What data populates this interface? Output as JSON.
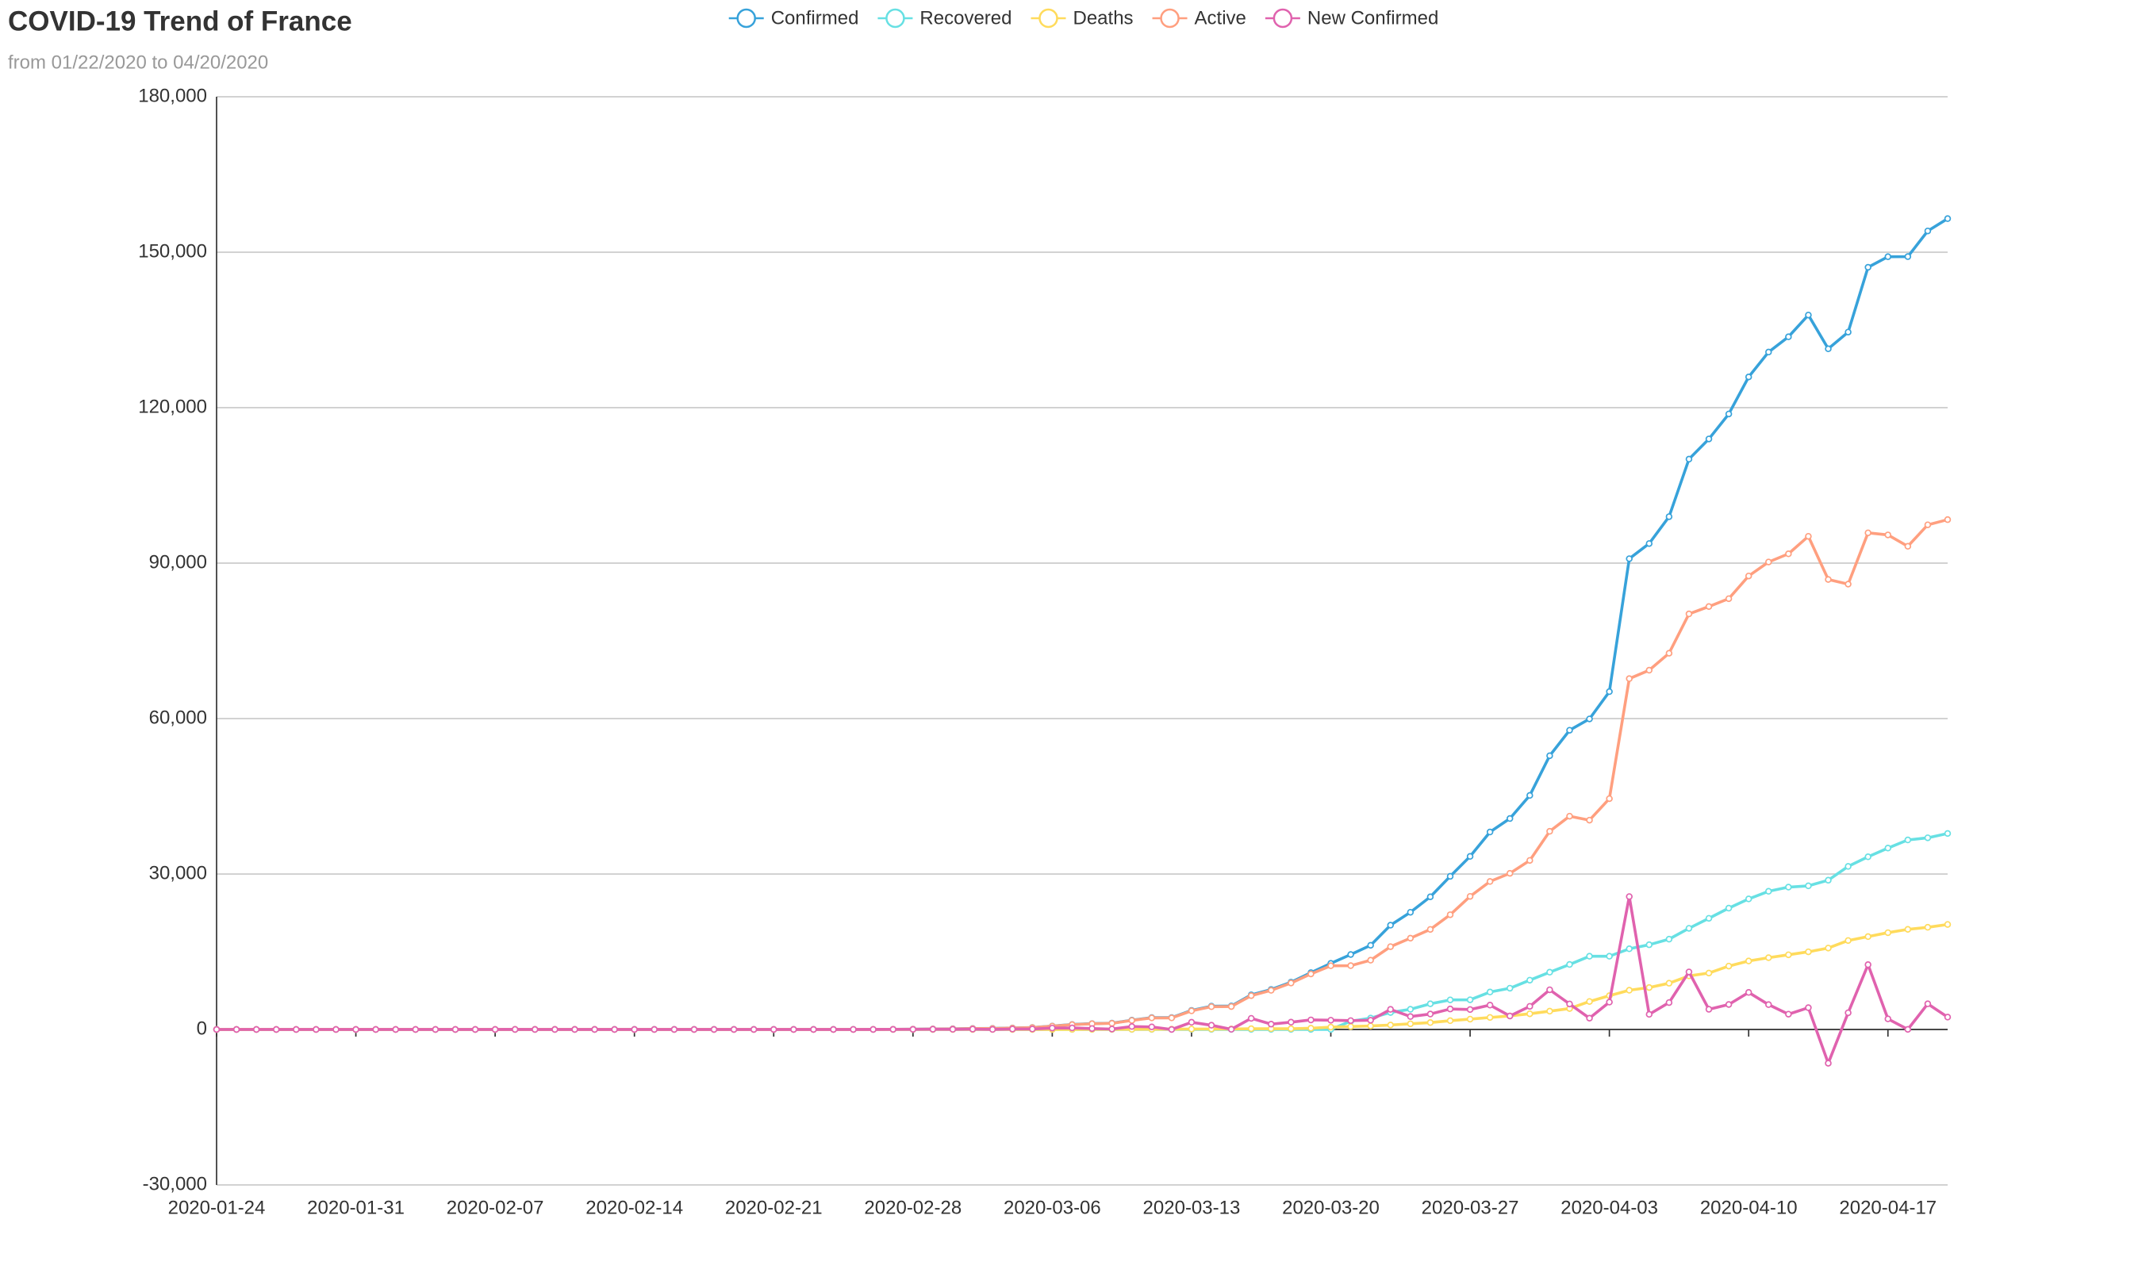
{
  "chart_data": {
    "type": "line",
    "title": "COVID-19 Trend of France",
    "subtitle": "from 01/22/2020 to 04/20/2020",
    "categories": [
      "2020-01-24",
      null,
      null,
      null,
      null,
      null,
      null,
      "2020-01-31",
      null,
      null,
      null,
      null,
      null,
      null,
      "2020-02-07",
      null,
      null,
      null,
      null,
      null,
      null,
      "2020-02-14",
      null,
      null,
      null,
      null,
      null,
      null,
      "2020-02-21",
      null,
      null,
      null,
      null,
      null,
      null,
      "2020-02-28",
      null,
      null,
      null,
      null,
      null,
      null,
      "2020-03-06",
      null,
      null,
      null,
      null,
      null,
      null,
      "2020-03-13",
      null,
      null,
      null,
      null,
      null,
      null,
      "2020-03-20",
      null,
      null,
      null,
      null,
      null,
      null,
      "2020-03-27",
      null,
      null,
      null,
      null,
      null,
      null,
      "2020-04-03",
      null,
      null,
      null,
      null,
      null,
      null,
      "2020-04-10",
      null,
      null,
      null,
      null,
      null,
      null,
      "2020-04-17",
      null,
      null,
      null
    ],
    "series": [
      {
        "name": "Confirmed",
        "color": "#37a2da",
        "values": [
          2,
          3,
          3,
          3,
          4,
          5,
          5,
          5,
          6,
          6,
          6,
          6,
          6,
          6,
          6,
          11,
          11,
          11,
          11,
          11,
          11,
          11,
          12,
          12,
          12,
          12,
          12,
          12,
          12,
          12,
          12,
          12,
          14,
          18,
          38,
          57,
          100,
          130,
          191,
          204,
          288,
          380,
          656,
          959,
          1136,
          1219,
          1794,
          2293,
          2293,
          3681,
          4496,
          4532,
          6683,
          7715,
          9124,
          10970,
          12758,
          14463,
          16243,
          20123,
          22622,
          25600,
          29551,
          33402,
          38105,
          40708,
          45170,
          52827,
          57749,
          59929,
          65202,
          90848,
          93773,
          98963,
          110065,
          113959,
          118781,
          125931,
          130727,
          133677,
          137877,
          131362,
          134582,
          147091,
          149130,
          149149,
          154097,
          156480
        ]
      },
      {
        "name": "Recovered",
        "color": "#67e0e3",
        "values": [
          0,
          0,
          0,
          0,
          0,
          0,
          0,
          0,
          0,
          0,
          0,
          0,
          0,
          0,
          0,
          0,
          0,
          0,
          0,
          0,
          4,
          4,
          4,
          4,
          4,
          4,
          4,
          4,
          4,
          4,
          4,
          4,
          4,
          4,
          4,
          4,
          4,
          12,
          12,
          12,
          12,
          12,
          12,
          12,
          12,
          12,
          12,
          12,
          12,
          12,
          12,
          12,
          12,
          12,
          12,
          12,
          12,
          1587,
          2200,
          3281,
          3900,
          4955,
          5707,
          5724,
          7226,
          7964,
          9513,
          11053,
          12548,
          14135,
          14135,
          15572,
          16349,
          17428,
          19523,
          21452,
          23413,
          25195,
          26663,
          27469,
          27718,
          28805,
          31470,
          33327,
          35006,
          36578,
          36987,
          37825
        ]
      },
      {
        "name": "Deaths",
        "color": "#ffdb5c",
        "values": [
          0,
          0,
          0,
          0,
          0,
          0,
          0,
          0,
          0,
          0,
          0,
          0,
          0,
          0,
          0,
          0,
          0,
          0,
          0,
          0,
          0,
          0,
          1,
          1,
          1,
          1,
          1,
          1,
          1,
          1,
          1,
          1,
          1,
          2,
          2,
          2,
          2,
          2,
          3,
          4,
          4,
          6,
          9,
          11,
          19,
          19,
          33,
          48,
          48,
          79,
          91,
          91,
          148,
          148,
          148,
          243,
          450,
          562,
          674,
          860,
          1100,
          1333,
          1698,
          1997,
          2317,
          2611,
          3030,
          3532,
          4043,
          5398,
          6520,
          7574,
          8093,
          8926,
          10343,
          10887,
          12228,
          13215,
          13851,
          14412,
          14986,
          15712,
          17167,
          17920,
          18681,
          19323,
          19718,
          20265
        ]
      },
      {
        "name": "Active",
        "color": "#ff9f7f",
        "values": [
          2,
          3,
          3,
          3,
          4,
          5,
          5,
          5,
          6,
          6,
          6,
          6,
          6,
          6,
          6,
          11,
          11,
          11,
          11,
          11,
          7,
          7,
          7,
          7,
          7,
          7,
          7,
          7,
          7,
          7,
          7,
          7,
          9,
          12,
          32,
          51,
          94,
          116,
          176,
          188,
          272,
          362,
          635,
          936,
          1105,
          1188,
          1749,
          2233,
          2233,
          3590,
          4393,
          4429,
          6523,
          7555,
          8964,
          10715,
          12296,
          12314,
          13369,
          15982,
          17622,
          19312,
          22146,
          25681,
          28562,
          30133,
          32627,
          38242,
          41158,
          40396,
          44547,
          67702,
          69331,
          72609,
          80199,
          81620,
          83140,
          87521,
          90213,
          91796,
          95173,
          86845,
          85945,
          95844,
          95443,
          93248,
          97392,
          98390
        ]
      },
      {
        "name": "New Confirmed",
        "color": "#e062ae",
        "values": [
          0,
          1,
          0,
          0,
          1,
          1,
          0,
          0,
          1,
          0,
          0,
          0,
          0,
          0,
          0,
          5,
          0,
          0,
          0,
          0,
          0,
          0,
          1,
          0,
          0,
          0,
          0,
          0,
          0,
          0,
          0,
          0,
          2,
          4,
          20,
          19,
          43,
          30,
          61,
          13,
          84,
          92,
          276,
          303,
          177,
          83,
          575,
          499,
          0,
          1388,
          815,
          36,
          2151,
          1032,
          1409,
          1846,
          1788,
          1705,
          1780,
          3880,
          2499,
          2978,
          3951,
          3851,
          4703,
          2603,
          4462,
          7657,
          4922,
          2180,
          5273,
          25646,
          2925,
          5190,
          11102,
          3894,
          4822,
          7150,
          4796,
          2950,
          4200,
          -6515,
          3220,
          12509,
          2039,
          19,
          4948,
          2383
        ]
      }
    ],
    "ylim": [
      -30000,
      180000
    ],
    "yticks": [
      {
        "value": -30000,
        "label": "-30,000"
      },
      0,
      {
        "value": 30000,
        "label": "30,000"
      },
      {
        "value": 60000,
        "label": "60,000"
      },
      {
        "value": 90000,
        "label": "90,000"
      },
      {
        "value": 120000,
        "label": "120,000"
      },
      {
        "value": 150000,
        "label": "150,000"
      },
      {
        "value": 180000,
        "label": "180,000"
      }
    ],
    "grid": true,
    "legend": "top"
  }
}
